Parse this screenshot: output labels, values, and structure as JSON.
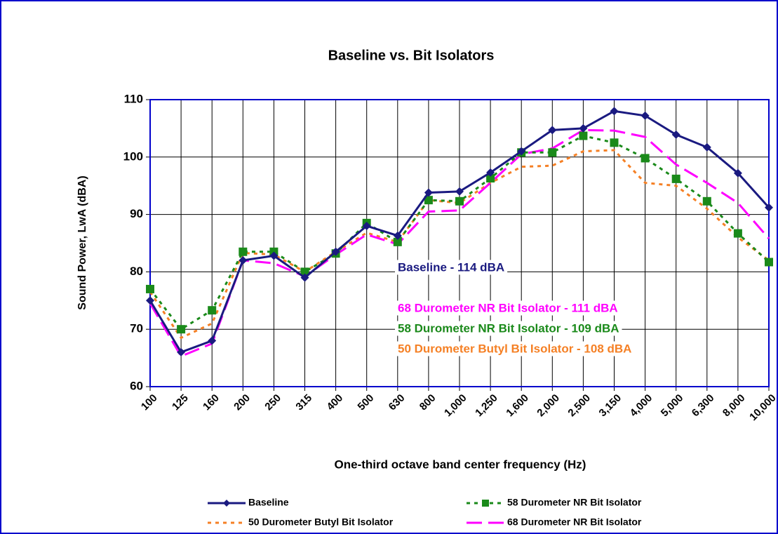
{
  "chart_data": {
    "type": "line",
    "title": "Baseline vs. Bit Isolators",
    "x_label": "One-third octave band center frequency (Hz)",
    "y_label": "Sound Power, LwA (dBA)",
    "categories": [
      "100",
      "125",
      "160",
      "200",
      "250",
      "315",
      "400",
      "500",
      "630",
      "800",
      "1,000",
      "1,250",
      "1,600",
      "2,000",
      "2,500",
      "3,150",
      "4,000",
      "5,000",
      "6,300",
      "8,000",
      "10,000"
    ],
    "ylim": [
      60,
      110
    ],
    "yticks": [
      60,
      70,
      80,
      90,
      100,
      110
    ],
    "grid": true,
    "series": [
      {
        "name": "Baseline",
        "color": "#1a1a80",
        "line_style": "solid",
        "marker": "diamond",
        "values": [
          75,
          66,
          68,
          82,
          82.8,
          79,
          83.5,
          88,
          86.3,
          93.8,
          94,
          97.3,
          101,
          104.7,
          105,
          108,
          107.2,
          103.9,
          101.7,
          97.2,
          91.2
        ]
      },
      {
        "name": "58 Durometer NR Bit Isolator",
        "color": "#1a8a1a",
        "line_style": "dotted",
        "marker": "square",
        "values": [
          77,
          70,
          73.3,
          83.5,
          83.5,
          80,
          83.2,
          88.5,
          85.2,
          92.5,
          92.3,
          96.3,
          100.8,
          100.8,
          103.7,
          102.5,
          99.8,
          96.2,
          92.3,
          86.7,
          81.7
        ]
      },
      {
        "name": "50 Durometer Butyl Bit Isolator",
        "color": "#f58025",
        "line_style": "dotted",
        "marker": "none",
        "values": [
          76.5,
          68.5,
          71,
          83.3,
          83,
          80,
          83.5,
          86.8,
          85.2,
          92.5,
          92,
          95.5,
          98.3,
          98.5,
          101,
          101.2,
          95.5,
          95,
          91,
          86,
          82
        ]
      },
      {
        "name": "68 Durometer NR Bit Isolator",
        "color": "#ff00ff",
        "line_style": "dashed",
        "marker": "none",
        "values": [
          74.5,
          65.3,
          67.5,
          82,
          81.5,
          79.2,
          83,
          86.5,
          84.8,
          90.5,
          90.7,
          95.5,
          100.5,
          101.5,
          104.7,
          104.6,
          103.5,
          98.7,
          95.5,
          92,
          85.8
        ]
      }
    ],
    "annotations": [
      {
        "text": "Baseline - 114 dBA",
        "color": "#1a1a80"
      },
      {
        "text": "68 Durometer NR Bit Isolator - 111 dBA",
        "color": "#ff00ff"
      },
      {
        "text": "58 Durometer NR Bit Isolator - 109 dBA",
        "color": "#1a8a1a"
      },
      {
        "text": "50 Durometer Butyl Bit Isolator - 108 dBA",
        "color": "#f58025"
      }
    ]
  }
}
